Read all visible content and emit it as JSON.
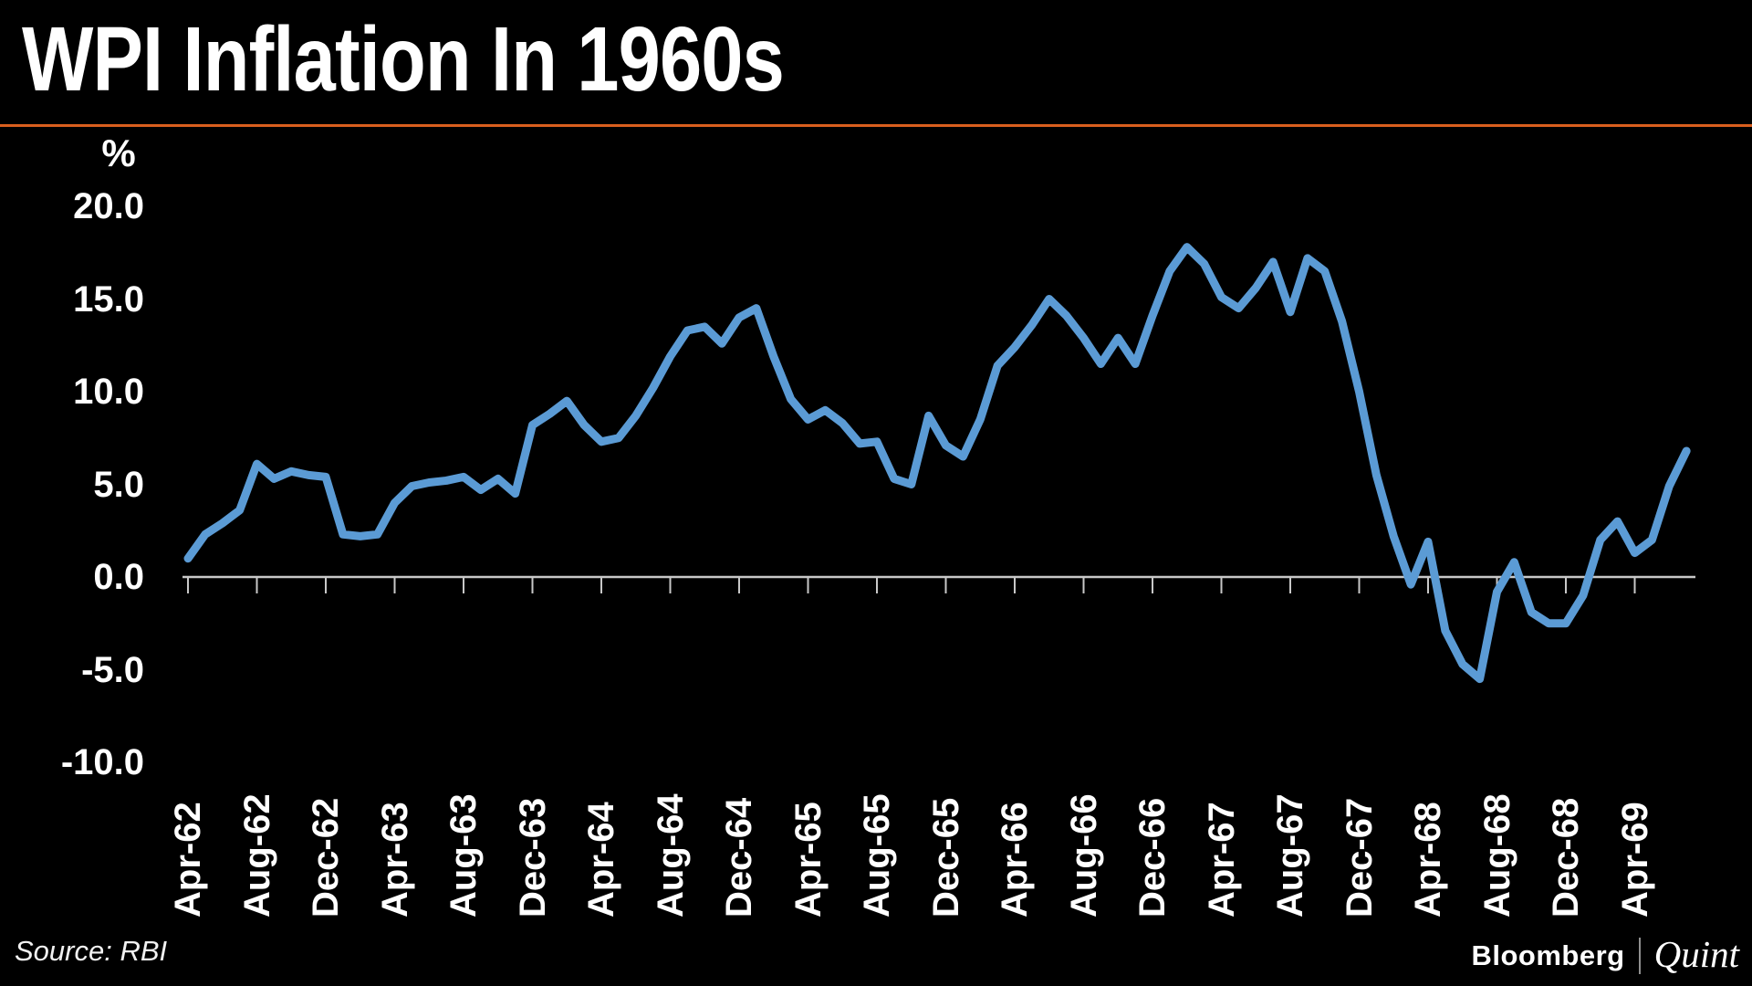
{
  "header": {
    "title": "WPI Inflation In 1960s",
    "accent_color": "#d95f1e"
  },
  "footer": {
    "source": "Source: RBI",
    "brand_bloomberg": "Bloomberg",
    "brand_quint": "Quint"
  },
  "chart_data": {
    "type": "line",
    "title": "WPI Inflation In 1960s",
    "ylabel": "%",
    "xlabel": "",
    "grid": false,
    "legend": "none",
    "background_color": "#000000",
    "line_color": "#5b9bd5",
    "axis_color": "#c8c8c8",
    "ylim": [
      -10,
      20
    ],
    "yticks": [
      20,
      15,
      10,
      5,
      0,
      -5,
      -10
    ],
    "ytick_labels": [
      "20.0",
      "15.0",
      "10.0",
      "5.0",
      "0.0",
      "-5.0",
      "-10.0"
    ],
    "x_tick_labels": [
      "Apr-62",
      "Aug-62",
      "Dec-62",
      "Apr-63",
      "Aug-63",
      "Dec-63",
      "Apr-64",
      "Aug-64",
      "Dec-64",
      "Apr-65",
      "Aug-65",
      "Dec-65",
      "Apr-66",
      "Aug-66",
      "Dec-66",
      "Apr-67",
      "Aug-67",
      "Dec-67",
      "Apr-68",
      "Aug-68",
      "Dec-68",
      "Apr-69"
    ],
    "months": [
      "Apr-62",
      "May-62",
      "Jun-62",
      "Jul-62",
      "Aug-62",
      "Sep-62",
      "Oct-62",
      "Nov-62",
      "Dec-62",
      "Jan-63",
      "Feb-63",
      "Mar-63",
      "Apr-63",
      "May-63",
      "Jun-63",
      "Jul-63",
      "Aug-63",
      "Sep-63",
      "Oct-63",
      "Nov-63",
      "Dec-63",
      "Jan-64",
      "Feb-64",
      "Mar-64",
      "Apr-64",
      "May-64",
      "Jun-64",
      "Jul-64",
      "Aug-64",
      "Sep-64",
      "Oct-64",
      "Nov-64",
      "Dec-64",
      "Jan-65",
      "Feb-65",
      "Mar-65",
      "Apr-65",
      "May-65",
      "Jun-65",
      "Jul-65",
      "Aug-65",
      "Sep-65",
      "Oct-65",
      "Nov-65",
      "Dec-65",
      "Jan-66",
      "Feb-66",
      "Mar-66",
      "Apr-66",
      "May-66",
      "Jun-66",
      "Jul-66",
      "Aug-66",
      "Sep-66",
      "Oct-66",
      "Nov-66",
      "Dec-66",
      "Jan-67",
      "Feb-67",
      "Mar-67",
      "Apr-67",
      "May-67",
      "Jun-67",
      "Jul-67",
      "Aug-67",
      "Sep-67",
      "Oct-67",
      "Nov-67",
      "Dec-67",
      "Jan-68",
      "Feb-68",
      "Mar-68",
      "Apr-68",
      "May-68",
      "Jun-68",
      "Jul-68",
      "Aug-68",
      "Sep-68",
      "Oct-68",
      "Nov-68",
      "Dec-68",
      "Jan-69",
      "Feb-69",
      "Mar-69",
      "Apr-69",
      "May-69",
      "Jun-69",
      "Jul-69"
    ],
    "series": [
      {
        "name": "WPI Inflation (%)",
        "values": [
          1.0,
          2.3,
          2.9,
          3.6,
          6.1,
          5.3,
          5.7,
          5.5,
          5.4,
          2.3,
          2.2,
          2.3,
          4.0,
          4.9,
          5.1,
          5.2,
          5.4,
          4.7,
          5.3,
          4.5,
          8.2,
          8.8,
          9.5,
          8.2,
          7.3,
          7.5,
          8.7,
          10.2,
          11.9,
          13.3,
          13.5,
          12.6,
          14.0,
          14.5,
          11.9,
          9.6,
          8.5,
          9.0,
          8.3,
          7.2,
          7.3,
          5.3,
          5.0,
          8.7,
          7.1,
          6.5,
          8.5,
          11.4,
          12.4,
          13.6,
          15.0,
          14.1,
          12.9,
          11.5,
          12.9,
          11.5,
          14.1,
          16.5,
          17.8,
          16.9,
          15.1,
          14.5,
          15.6,
          17.0,
          14.3,
          17.2,
          16.5,
          13.8,
          10.0,
          5.5,
          2.2,
          -0.4,
          1.9,
          -2.9,
          -4.7,
          -5.5,
          -0.8,
          0.8,
          -1.9,
          -2.5,
          -2.5,
          -1.0,
          2.0,
          3.0,
          1.3,
          2.0,
          4.9,
          6.8
        ]
      }
    ]
  }
}
